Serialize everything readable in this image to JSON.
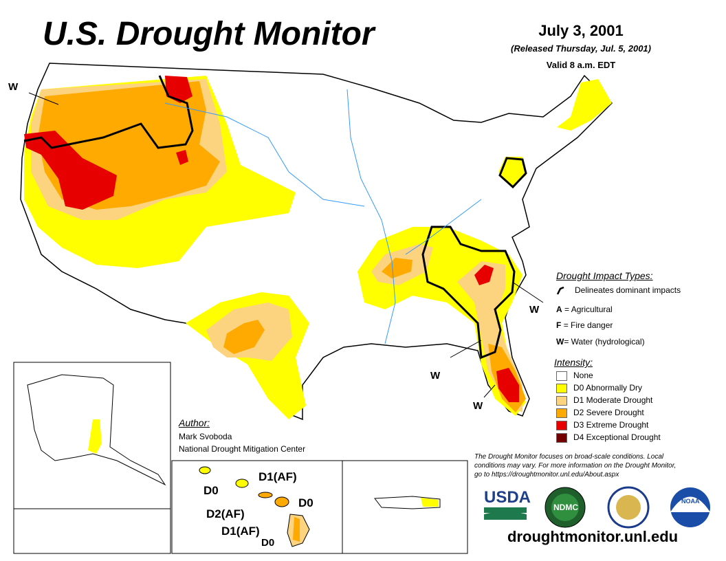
{
  "header": {
    "title": "U.S. Drought Monitor",
    "date": "July 3, 2001",
    "released": "(Released Thursday, Jul. 5, 2001)",
    "valid": "Valid 8 a.m. EDT"
  },
  "impact_legend": {
    "title": "Drought Impact Types:",
    "delineates": "Delineates dominant impacts",
    "items": [
      {
        "code": "A",
        "text": "= Agricultural"
      },
      {
        "code": "F",
        "text": "= Fire danger"
      },
      {
        "code": "W",
        "text": "= Water (hydrological)"
      }
    ]
  },
  "intensity_legend": {
    "title": "Intensity:",
    "items": [
      {
        "label": "None",
        "color": "#ffffff"
      },
      {
        "label": "D0 Abnormally Dry",
        "color": "#ffff00"
      },
      {
        "label": "D1 Moderate Drought",
        "color": "#fcd37f"
      },
      {
        "label": "D2 Severe Drought",
        "color": "#ffaa00"
      },
      {
        "label": "D3 Extreme Drought",
        "color": "#e60000"
      },
      {
        "label": "D4 Exceptional Drought",
        "color": "#730000"
      }
    ]
  },
  "author": {
    "heading": "Author:",
    "name": "Mark Svoboda",
    "org": "National Drought Mitigation Center"
  },
  "map_labels": {
    "w_northwest": "W",
    "w_southeast": "W",
    "w_georgia": "W",
    "w_florida": "W"
  },
  "hawaii_labels": {
    "d0_west": "D0",
    "d1_oahu": "D1(AF)",
    "d0_maui": "D0",
    "d2_maui": "D2(AF)",
    "d1_big": "D1(AF)",
    "d0_big": "D0"
  },
  "note": "The Drought Monitor focuses on broad-scale conditions. Local conditions may vary. For more information on the Drought Monitor, go to https://droughtmonitor.unl.edu/About.aspx",
  "logos": {
    "usda": "USDA",
    "ndmc": "NDMC",
    "noaa": "NOAA"
  },
  "url": "droughtmonitor.unl.edu"
}
